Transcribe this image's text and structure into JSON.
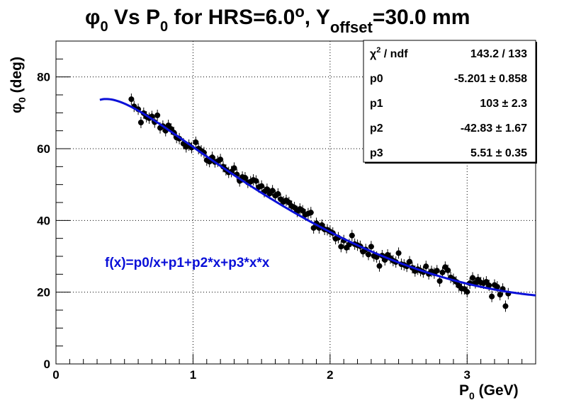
{
  "chart_data": {
    "type": "scatter",
    "title_parts": {
      "phi": "φ",
      "sub0": "0",
      "vs": " Vs P",
      "sub1": "0",
      "mid": " for HRS=6.0",
      "deg": "o",
      "comma": ", Y",
      "offset": "offset",
      "tail": "=30.0 mm"
    },
    "xlabel": {
      "main": "P",
      "sub": "0",
      "unit": " (GeV)"
    },
    "ylabel": {
      "main": "φ",
      "sub": "0",
      "unit": " (deg)"
    },
    "xlim": [
      0,
      3.5
    ],
    "ylim": [
      0,
      90
    ],
    "x_ticks": [
      "0",
      "1",
      "2",
      "3"
    ],
    "y_ticks": [
      "0",
      "20",
      "40",
      "60",
      "80"
    ],
    "grid": true,
    "fit": {
      "label": "f(x)=p0/x+p1+p2*x+p3*x*x",
      "color": "#0a10d8",
      "p0": -5.201,
      "p1": 103,
      "p2": -42.83,
      "p3": 5.51,
      "xrange": [
        0.32,
        3.5
      ]
    },
    "stats": [
      {
        "name_main": "χ",
        "name_sup": "2",
        "name_rest": " / ndf",
        "value": "143.2 / 133"
      },
      {
        "name_main": "p0",
        "name_sup": "",
        "name_rest": "",
        "value": "-5.201 ± 0.858"
      },
      {
        "name_main": "p1",
        "name_sup": "",
        "name_rest": "",
        "value": "103 ± 2.3"
      },
      {
        "name_main": "p2",
        "name_sup": "",
        "name_rest": "",
        "value": "-42.83 ± 1.67"
      },
      {
        "name_main": "p3",
        "name_sup": "",
        "name_rest": "",
        "value": "5.51 ± 0.35"
      }
    ],
    "points": [
      {
        "x": 0.55,
        "y": 73.8
      },
      {
        "x": 0.57,
        "y": 71.8
      },
      {
        "x": 0.6,
        "y": 71.0
      },
      {
        "x": 0.62,
        "y": 67.3
      },
      {
        "x": 0.64,
        "y": 69.9
      },
      {
        "x": 0.66,
        "y": 68.9
      },
      {
        "x": 0.68,
        "y": 68.5
      },
      {
        "x": 0.7,
        "y": 69.0
      },
      {
        "x": 0.72,
        "y": 67.4
      },
      {
        "x": 0.74,
        "y": 69.3
      },
      {
        "x": 0.76,
        "y": 65.8
      },
      {
        "x": 0.78,
        "y": 66.3
      },
      {
        "x": 0.8,
        "y": 65.0
      },
      {
        "x": 0.82,
        "y": 66.5
      },
      {
        "x": 0.84,
        "y": 65.5
      },
      {
        "x": 0.86,
        "y": 64.5
      },
      {
        "x": 0.88,
        "y": 63.1
      },
      {
        "x": 0.9,
        "y": 62.8
      },
      {
        "x": 0.93,
        "y": 61.4
      },
      {
        "x": 0.95,
        "y": 60.5
      },
      {
        "x": 0.97,
        "y": 61.0
      },
      {
        "x": 0.99,
        "y": 60.3
      },
      {
        "x": 1.02,
        "y": 61.8
      },
      {
        "x": 1.04,
        "y": 60.0
      },
      {
        "x": 1.06,
        "y": 59.4
      },
      {
        "x": 1.08,
        "y": 58.9
      },
      {
        "x": 1.1,
        "y": 56.8
      },
      {
        "x": 1.12,
        "y": 56.4
      },
      {
        "x": 1.14,
        "y": 57.6
      },
      {
        "x": 1.16,
        "y": 56.3
      },
      {
        "x": 1.18,
        "y": 56.5
      },
      {
        "x": 1.2,
        "y": 57.0
      },
      {
        "x": 1.22,
        "y": 55.0
      },
      {
        "x": 1.24,
        "y": 54.1
      },
      {
        "x": 1.26,
        "y": 53.4
      },
      {
        "x": 1.28,
        "y": 53.6
      },
      {
        "x": 1.3,
        "y": 54.6
      },
      {
        "x": 1.32,
        "y": 52.8
      },
      {
        "x": 1.34,
        "y": 51.0
      },
      {
        "x": 1.36,
        "y": 52.1
      },
      {
        "x": 1.38,
        "y": 51.9
      },
      {
        "x": 1.4,
        "y": 50.6
      },
      {
        "x": 1.42,
        "y": 50.8
      },
      {
        "x": 1.44,
        "y": 51.3
      },
      {
        "x": 1.46,
        "y": 51.0
      },
      {
        "x": 1.48,
        "y": 49.3
      },
      {
        "x": 1.5,
        "y": 49.6
      },
      {
        "x": 1.52,
        "y": 48.0
      },
      {
        "x": 1.54,
        "y": 48.7
      },
      {
        "x": 1.56,
        "y": 47.5
      },
      {
        "x": 1.58,
        "y": 48.3
      },
      {
        "x": 1.6,
        "y": 46.9
      },
      {
        "x": 1.62,
        "y": 47.4
      },
      {
        "x": 1.64,
        "y": 45.9
      },
      {
        "x": 1.66,
        "y": 45.2
      },
      {
        "x": 1.68,
        "y": 45.6
      },
      {
        "x": 1.7,
        "y": 45.0
      },
      {
        "x": 1.72,
        "y": 44.0
      },
      {
        "x": 1.74,
        "y": 43.6
      },
      {
        "x": 1.76,
        "y": 42.5
      },
      {
        "x": 1.78,
        "y": 43.2
      },
      {
        "x": 1.8,
        "y": 42.7
      },
      {
        "x": 1.82,
        "y": 41.6
      },
      {
        "x": 1.84,
        "y": 41.9
      },
      {
        "x": 1.86,
        "y": 42.2
      },
      {
        "x": 1.88,
        "y": 37.9
      },
      {
        "x": 1.9,
        "y": 39.2
      },
      {
        "x": 1.92,
        "y": 37.9
      },
      {
        "x": 1.94,
        "y": 38.7
      },
      {
        "x": 1.96,
        "y": 37.5
      },
      {
        "x": 1.98,
        "y": 37.4
      },
      {
        "x": 2.0,
        "y": 36.9
      },
      {
        "x": 2.02,
        "y": 36.5
      },
      {
        "x": 2.04,
        "y": 34.9
      },
      {
        "x": 2.06,
        "y": 35.2
      },
      {
        "x": 2.08,
        "y": 32.7
      },
      {
        "x": 2.1,
        "y": 34.4
      },
      {
        "x": 2.12,
        "y": 32.4
      },
      {
        "x": 2.14,
        "y": 33.3
      },
      {
        "x": 2.16,
        "y": 35.8
      },
      {
        "x": 2.18,
        "y": 33.4
      },
      {
        "x": 2.2,
        "y": 33.1
      },
      {
        "x": 2.22,
        "y": 32.8
      },
      {
        "x": 2.24,
        "y": 31.3
      },
      {
        "x": 2.26,
        "y": 31.9
      },
      {
        "x": 2.28,
        "y": 30.5
      },
      {
        "x": 2.3,
        "y": 32.7
      },
      {
        "x": 2.32,
        "y": 30.1
      },
      {
        "x": 2.34,
        "y": 29.8
      },
      {
        "x": 2.36,
        "y": 27.3
      },
      {
        "x": 2.38,
        "y": 30.2
      },
      {
        "x": 2.4,
        "y": 29.0
      },
      {
        "x": 2.42,
        "y": 30.4
      },
      {
        "x": 2.44,
        "y": 29.5
      },
      {
        "x": 2.46,
        "y": 28.8
      },
      {
        "x": 2.48,
        "y": 28.4
      },
      {
        "x": 2.5,
        "y": 30.9
      },
      {
        "x": 2.52,
        "y": 27.8
      },
      {
        "x": 2.54,
        "y": 27.6
      },
      {
        "x": 2.56,
        "y": 27.2
      },
      {
        "x": 2.58,
        "y": 28.5
      },
      {
        "x": 2.6,
        "y": 26.8
      },
      {
        "x": 2.62,
        "y": 25.9
      },
      {
        "x": 2.64,
        "y": 26.4
      },
      {
        "x": 2.66,
        "y": 26.0
      },
      {
        "x": 2.68,
        "y": 25.6
      },
      {
        "x": 2.7,
        "y": 27.2
      },
      {
        "x": 2.72,
        "y": 25.1
      },
      {
        "x": 2.74,
        "y": 25.8
      },
      {
        "x": 2.76,
        "y": 25.3
      },
      {
        "x": 2.78,
        "y": 26.0
      },
      {
        "x": 2.8,
        "y": 23.1
      },
      {
        "x": 2.82,
        "y": 25.5
      },
      {
        "x": 2.84,
        "y": 27.0
      },
      {
        "x": 2.86,
        "y": 26.1
      },
      {
        "x": 2.88,
        "y": 24.1
      },
      {
        "x": 2.9,
        "y": 23.6
      },
      {
        "x": 2.92,
        "y": 22.9
      },
      {
        "x": 2.94,
        "y": 21.8
      },
      {
        "x": 2.96,
        "y": 21.0
      },
      {
        "x": 2.98,
        "y": 20.9
      },
      {
        "x": 3.0,
        "y": 20.1
      },
      {
        "x": 3.02,
        "y": 22.5
      },
      {
        "x": 3.04,
        "y": 24.0
      },
      {
        "x": 3.06,
        "y": 22.6
      },
      {
        "x": 3.08,
        "y": 23.5
      },
      {
        "x": 3.1,
        "y": 22.7
      },
      {
        "x": 3.12,
        "y": 22.5
      },
      {
        "x": 3.14,
        "y": 22.9
      },
      {
        "x": 3.16,
        "y": 21.9
      },
      {
        "x": 3.18,
        "y": 18.8
      },
      {
        "x": 3.2,
        "y": 22.0
      },
      {
        "x": 3.22,
        "y": 21.5
      },
      {
        "x": 3.24,
        "y": 19.3
      },
      {
        "x": 3.26,
        "y": 20.9
      },
      {
        "x": 3.28,
        "y": 16.1
      },
      {
        "x": 3.3,
        "y": 19.6
      }
    ]
  }
}
